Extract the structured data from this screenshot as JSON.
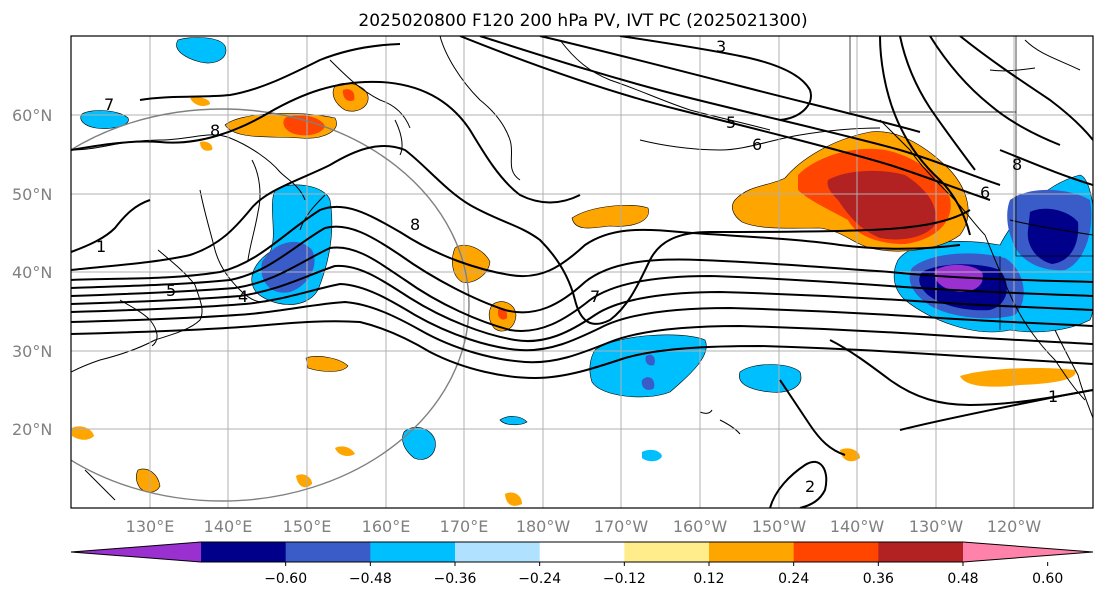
{
  "title": "2025020800 F120 200 hPa PV, IVT PC (2025021300)",
  "lat_labels": [
    "20°N",
    "30°N",
    "40°N",
    "50°N",
    "60°N"
  ],
  "lon_labels": [
    "130°E",
    "140°E",
    "150°E",
    "160°E",
    "170°E",
    "180°W",
    "170°W",
    "160°W",
    "150°W",
    "140°W",
    "130°W",
    "120°W"
  ],
  "colorbar": {
    "tick_labels": [
      "−0.60",
      "−0.48",
      "−0.36",
      "−0.24",
      "−0.12",
      "0.12",
      "0.24",
      "0.36",
      "0.48",
      "0.60"
    ],
    "colors": [
      "#9b30d0",
      "#00008b",
      "#3a5cc8",
      "#00bfff",
      "#b0e2ff",
      "#ffffff",
      "#ffec8b",
      "#ffa500",
      "#ff4500",
      "#b22222",
      "#ff82ab"
    ]
  },
  "contour_labels": [
    "3",
    "5",
    "6",
    "8",
    "8",
    "7",
    "1",
    "2",
    "6",
    "7",
    "8",
    "5",
    "4",
    "1"
  ],
  "colors": {
    "contour": "#000000",
    "grid": "#b0b0b0",
    "circle": "#808080"
  }
}
